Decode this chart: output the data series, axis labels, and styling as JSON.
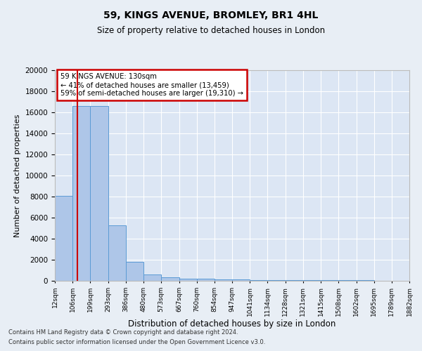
{
  "title1": "59, KINGS AVENUE, BROMLEY, BR1 4HL",
  "title2": "Size of property relative to detached houses in London",
  "xlabel": "Distribution of detached houses by size in London",
  "ylabel": "Number of detached properties",
  "footer1": "Contains HM Land Registry data © Crown copyright and database right 2024.",
  "footer2": "Contains public sector information licensed under the Open Government Licence v3.0.",
  "annotation_title": "59 KINGS AVENUE: 130sqm",
  "annotation_line2": "← 41% of detached houses are smaller (13,459)",
  "annotation_line3": "59% of semi-detached houses are larger (19,310) →",
  "bin_labels": [
    "12sqm",
    "106sqm",
    "199sqm",
    "293sqm",
    "386sqm",
    "480sqm",
    "573sqm",
    "667sqm",
    "760sqm",
    "854sqm",
    "947sqm",
    "1041sqm",
    "1134sqm",
    "1228sqm",
    "1321sqm",
    "1415sqm",
    "1508sqm",
    "1602sqm",
    "1695sqm",
    "1789sqm",
    "1882sqm"
  ],
  "bar_heights": [
    8050,
    16600,
    16600,
    5300,
    1800,
    630,
    330,
    230,
    180,
    140,
    110,
    90,
    80,
    70,
    60,
    50,
    40,
    35,
    30,
    25
  ],
  "bar_color": "#aec6e8",
  "bar_edge_color": "#5b9bd5",
  "red_line_color": "#cc0000",
  "ylim": [
    0,
    20000
  ],
  "yticks": [
    0,
    2000,
    4000,
    6000,
    8000,
    10000,
    12000,
    14000,
    16000,
    18000,
    20000
  ],
  "background_color": "#e8eef5",
  "plot_background": "#dce6f4",
  "grid_color": "#ffffff",
  "annotation_box_color": "#ffffff",
  "annotation_box_edge": "#cc0000",
  "bin_edges": [
    12,
    106,
    199,
    293,
    386,
    480,
    573,
    667,
    760,
    854,
    947,
    1041,
    1134,
    1228,
    1321,
    1415,
    1508,
    1602,
    1695,
    1789,
    1882
  ]
}
